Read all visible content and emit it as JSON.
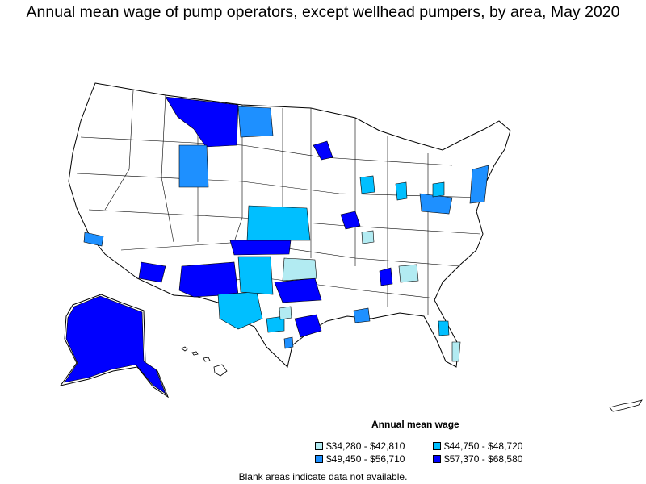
{
  "title": "Annual mean wage of pump operators, except wellhead pumpers, by area, May 2020",
  "legend": {
    "title": "Annual mean wage",
    "items": [
      {
        "label": "$34,280 - $42,810",
        "color": "#b2ebf2"
      },
      {
        "label": "$44,750 - $48,720",
        "color": "#00bfff"
      },
      {
        "label": "$49,450 - $56,710",
        "color": "#1e90ff"
      },
      {
        "label": "$57,370 - $68,580",
        "color": "#0000ff"
      }
    ]
  },
  "footnote": "Blank areas indicate data not available.",
  "colors": {
    "outline": "#000000",
    "blank": "#ffffff",
    "bin1": "#b2ebf2",
    "bin2": "#00bfff",
    "bin3": "#1e90ff",
    "bin4": "#0000ff"
  }
}
